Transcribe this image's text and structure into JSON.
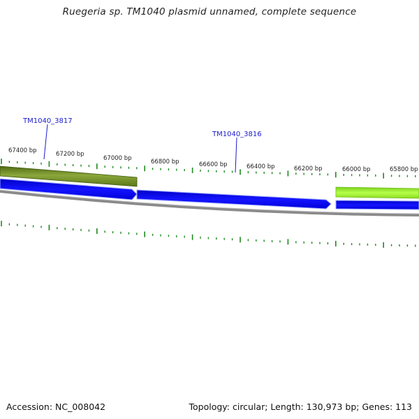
{
  "header": {
    "title": "Ruegeria sp. TM1040 plasmid unnamed, complete sequence"
  },
  "map": {
    "ruler_labels": [
      "67400 bp",
      "67200 bp",
      "67000 bp",
      "66800 bp",
      "66600 bp",
      "66400 bp",
      "66200 bp",
      "66000 bp",
      "65800 bp"
    ],
    "gene_labels": [
      "TM1040_3817",
      "TM1040_3816"
    ],
    "colors": {
      "forward_gene": "#7a9b2d",
      "forward_gene_light": "#a8ff3c",
      "reverse_gene": "#0000ee",
      "backbone": "#7f7f7f",
      "ticks": "#1e8a1e",
      "gene_label": "#1a1acc"
    }
  },
  "footer": {
    "accession": "Accession: NC_008042",
    "summary": "Topology: circular; Length: 130,973 bp; Genes: 113"
  }
}
